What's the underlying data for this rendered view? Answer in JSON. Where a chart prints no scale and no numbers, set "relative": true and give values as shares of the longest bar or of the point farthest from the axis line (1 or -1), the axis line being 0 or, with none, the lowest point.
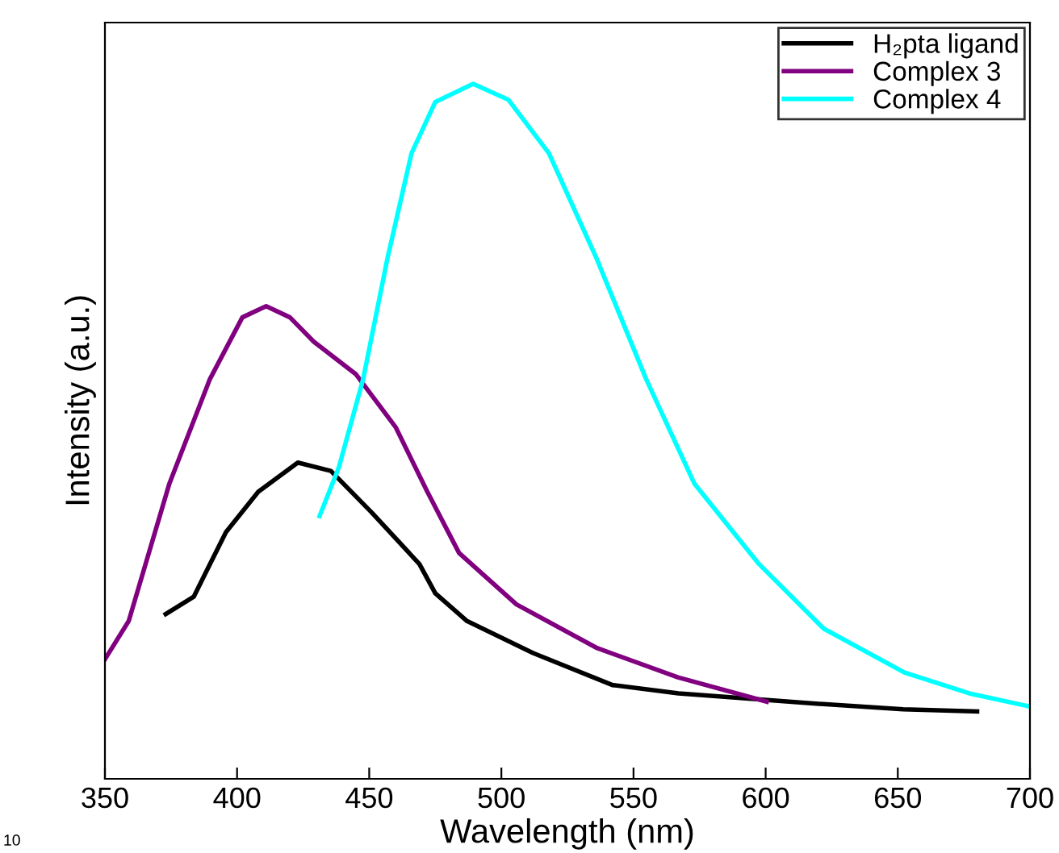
{
  "chart_data": {
    "type": "line",
    "relative": true,
    "xlabel": "Wavelength (nm)",
    "ylabel": "Intensity (a.u.)",
    "xlim": [
      350,
      700
    ],
    "xticks": [
      350,
      400,
      450,
      500,
      550,
      600,
      650,
      700
    ],
    "legend": "top right",
    "grid": false,
    "marker": "none",
    "line_style": "solid",
    "annotations": [
      "10"
    ],
    "series": [
      {
        "name": "H₂pta ligand",
        "color": "#000000",
        "x": [
          373,
          383.6,
          395.8,
          408,
          423,
          435.5,
          451,
          469,
          475,
          487,
          512,
          542,
          567,
          616,
          652,
          680
        ],
        "values": [
          0.237,
          0.262,
          0.355,
          0.413,
          0.455,
          0.443,
          0.383,
          0.309,
          0.267,
          0.227,
          0.181,
          0.135,
          0.123,
          0.109,
          0.1,
          0.097
        ]
      },
      {
        "name": "Complex 3",
        "color": "#800080",
        "x": [
          350,
          359,
          374.4,
          389.7,
          402,
          411,
          420,
          429,
          445,
          460,
          472,
          484,
          505.7,
          536.3,
          566.8,
          600.4
        ],
        "values": [
          0.172,
          0.227,
          0.425,
          0.575,
          0.664,
          0.68,
          0.664,
          0.629,
          0.582,
          0.506,
          0.413,
          0.325,
          0.251,
          0.188,
          0.146,
          0.111
        ]
      },
      {
        "name": "Complex 4",
        "color": "#00ffff",
        "x": [
          431.2,
          438.5,
          447.7,
          456.9,
          466,
          475,
          489.3,
          502.7,
          518,
          536,
          554.8,
          573,
          597.5,
          622,
          652.5,
          677,
          700
        ],
        "values": [
          0.378,
          0.448,
          0.575,
          0.749,
          0.9,
          0.974,
          1.0,
          0.977,
          0.9,
          0.749,
          0.575,
          0.425,
          0.309,
          0.216,
          0.153,
          0.123,
          0.104
        ]
      }
    ]
  }
}
